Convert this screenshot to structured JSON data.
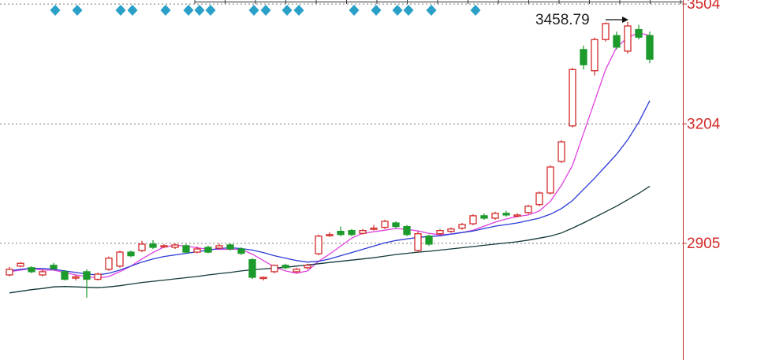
{
  "chart_data": {
    "type": "candlestick",
    "ylim": [
      2613,
      3514
    ],
    "yticks": [
      2905,
      3204,
      3504
    ],
    "grid": true,
    "up_color": "#d42a2a",
    "down_color": "#1c9a2c",
    "axis_color": "#d42a2a",
    "annotation": {
      "text": "3458.79",
      "value": 3458.79
    },
    "candles": {
      "open": [
        2826,
        2848,
        2844,
        2826,
        2850,
        2834,
        2818,
        2834,
        2815,
        2840,
        2848,
        2883,
        2887,
        2903,
        2897,
        2895,
        2899,
        2883,
        2895,
        2893,
        2901,
        2891,
        2864,
        2818,
        2834,
        2850,
        2834,
        2844,
        2879,
        2925,
        2935,
        2937,
        2930,
        2941,
        2945,
        2956,
        2947,
        2887,
        2923,
        2929,
        2935,
        2943,
        2954,
        2974,
        2968,
        2980,
        2974,
        2982,
        3002,
        3031,
        3110,
        3199,
        3390,
        3337,
        3415,
        3425,
        3386,
        3440,
        3425
      ],
      "high": [
        2846,
        2858,
        2848,
        2840,
        2856,
        2838,
        2826,
        2840,
        2832,
        2872,
        2887,
        2887,
        2911,
        2913,
        2903,
        2905,
        2903,
        2897,
        2899,
        2905,
        2905,
        2895,
        2868,
        2822,
        2852,
        2854,
        2844,
        2854,
        2927,
        2933,
        2947,
        2941,
        2941,
        2951,
        2964,
        2960,
        2951,
        2935,
        2927,
        2941,
        2945,
        2956,
        2978,
        2980,
        2984,
        2986,
        2980,
        3002,
        3035,
        3100,
        3163,
        3344,
        3400,
        3420,
        3458,
        3435,
        3458.79,
        3452,
        3435
      ],
      "low": [
        2822,
        2845,
        2830,
        2822,
        2838,
        2812,
        2812,
        2769,
        2812,
        2836,
        2844,
        2870,
        2883,
        2891,
        2893,
        2891,
        2880,
        2880,
        2880,
        2891,
        2887,
        2876,
        2816,
        2812,
        2830,
        2840,
        2830,
        2840,
        2875,
        2921,
        2923,
        2923,
        2927,
        2937,
        2941,
        2943,
        2923,
        2883,
        2899,
        2925,
        2931,
        2939,
        2950,
        2964,
        2964,
        2972,
        2970,
        2978,
        2998,
        3027,
        3106,
        3195,
        3340,
        3325,
        3410,
        3390,
        3380,
        3415,
        3356
      ],
      "close": [
        2840,
        2855,
        2834,
        2834,
        2842,
        2815,
        2821,
        2815,
        2828,
        2868,
        2883,
        2874,
        2903,
        2895,
        2899,
        2901,
        2883,
        2891,
        2883,
        2899,
        2891,
        2880,
        2820,
        2820,
        2850,
        2844,
        2840,
        2850,
        2923,
        2927,
        2927,
        2927,
        2937,
        2943,
        2960,
        2947,
        2927,
        2929,
        2903,
        2937,
        2941,
        2952,
        2974,
        2968,
        2980,
        2976,
        2976,
        2998,
        3031,
        3096,
        3159,
        3340,
        3352,
        3415,
        3455,
        3396,
        3449,
        3421,
        3366
      ]
    },
    "lines": [
      {
        "color": "#e040e0",
        "values": [
          2834,
          2838,
          2842,
          2838,
          2838,
          2832,
          2826,
          2822,
          2818,
          2822,
          2834,
          2848,
          2866,
          2882,
          2896,
          2900,
          2898,
          2894,
          2890,
          2890,
          2890,
          2890,
          2878,
          2862,
          2846,
          2836,
          2830,
          2836,
          2860,
          2878,
          2898,
          2918,
          2930,
          2934,
          2938,
          2942,
          2940,
          2936,
          2930,
          2926,
          2928,
          2932,
          2938,
          2948,
          2958,
          2966,
          2972,
          2976,
          2986,
          3010,
          3050,
          3100,
          3180,
          3260,
          3340,
          3396,
          3420,
          3432,
          3425
        ]
      },
      {
        "color": "#2a3ad6",
        "values": [
          2836,
          2840,
          2842,
          2842,
          2840,
          2836,
          2832,
          2828,
          2826,
          2830,
          2838,
          2848,
          2858,
          2866,
          2872,
          2876,
          2880,
          2884,
          2888,
          2892,
          2894,
          2892,
          2888,
          2882,
          2874,
          2868,
          2862,
          2858,
          2860,
          2866,
          2874,
          2882,
          2890,
          2898,
          2906,
          2912,
          2916,
          2920,
          2922,
          2924,
          2928,
          2932,
          2936,
          2942,
          2948,
          2952,
          2956,
          2962,
          2968,
          2978,
          2992,
          3012,
          3040,
          3068,
          3098,
          3128,
          3164,
          3208,
          3262
        ]
      },
      {
        "color": "#123838",
        "values": [
          2781,
          2785,
          2789,
          2792,
          2796,
          2797,
          2796,
          2795,
          2794,
          2796,
          2799,
          2803,
          2807,
          2810,
          2813,
          2816,
          2819,
          2822,
          2826,
          2829,
          2832,
          2836,
          2839,
          2841,
          2843,
          2845,
          2848,
          2851,
          2854,
          2857,
          2860,
          2863,
          2866,
          2869,
          2873,
          2877,
          2880,
          2883,
          2885,
          2888,
          2891,
          2894,
          2897,
          2900,
          2903,
          2906,
          2909,
          2913,
          2918,
          2923,
          2931,
          2943,
          2956,
          2970,
          2984,
          2998,
          3014,
          3030,
          3048
        ]
      }
    ]
  }
}
